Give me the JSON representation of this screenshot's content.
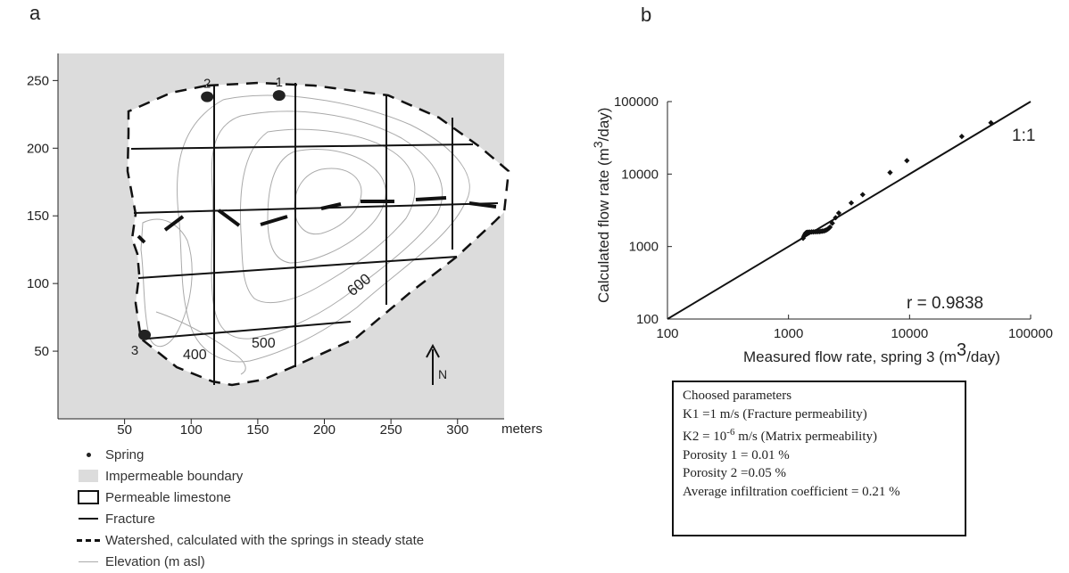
{
  "panel_a": {
    "letter": "a",
    "x_ticks": [
      "50",
      "100",
      "150",
      "200",
      "250",
      "300"
    ],
    "x_unit": "meters",
    "y_ticks": [
      "50",
      "100",
      "150",
      "200",
      "250"
    ],
    "springs": [
      {
        "label": "2",
        "x": 112,
        "y": 238
      },
      {
        "label": "1",
        "x": 166,
        "y": 239
      },
      {
        "label": "3",
        "x": 65,
        "y": 62
      }
    ],
    "contour_labels": [
      "600",
      "500",
      "400"
    ],
    "north_label": "N"
  },
  "legend": {
    "items": [
      {
        "symbol": "dot",
        "label": "Spring"
      },
      {
        "symbol": "gray",
        "label": "Impermeable boundary"
      },
      {
        "symbol": "box",
        "label": "Permeable limestone"
      },
      {
        "symbol": "line",
        "label": "Fracture"
      },
      {
        "symbol": "dash",
        "label": "Watershed, calculated with the springs in steady state"
      },
      {
        "symbol": "thin",
        "label": "Elevation (m asl)"
      }
    ]
  },
  "panel_b": {
    "letter": "b",
    "ylabel_main": "Calculated flow rate  (m",
    "ylabel_sup": "3",
    "ylabel_tail": "/day)",
    "xlabel_main": "Measured flow rate, spring 3 (m",
    "xlabel_sup": "3",
    "xlabel_tail": "/day)",
    "one_to_one_label": "1:1",
    "r_label": "r = 0.9838"
  },
  "parameters": {
    "title": "Choosed parameters",
    "k1": "K1 =1 m/s  (Fracture permeability)",
    "k2_prefix": "K2 = 10",
    "k2_exp": "-6",
    "k2_suffix": "m/s (Matrix permeability)",
    "porosity1": "Porosity 1 = 0.01 %",
    "porosity2": "Porosity 2 =0.05 %",
    "infiltration": "Average infiltration coefficient = 0.21 %"
  },
  "chart_data": [
    {
      "type": "map",
      "xlim": [
        0,
        335
      ],
      "ylim": [
        0,
        270
      ],
      "x_ticks": [
        50,
        100,
        150,
        200,
        250,
        300
      ],
      "y_ticks": [
        50,
        100,
        150,
        200,
        250
      ],
      "colors": {
        "impermeable": "#dcdcdc",
        "limestone": "#ffffff"
      }
    },
    {
      "type": "scatter",
      "x_scale": "log",
      "y_scale": "log",
      "xlim": [
        100,
        100000
      ],
      "ylim": [
        100,
        100000
      ],
      "x_ticks": [
        100,
        1000,
        10000,
        100000
      ],
      "y_ticks": [
        100,
        1000,
        10000,
        100000
      ],
      "x_tick_labels": [
        "100",
        "1000",
        "10000",
        "100000"
      ],
      "y_tick_labels": [
        "100",
        "1000",
        "10000",
        "100000"
      ],
      "series": [
        {
          "points": [
            [
              1320,
              1300
            ],
            [
              1340,
              1380
            ],
            [
              1360,
              1450
            ],
            [
              1380,
              1520
            ],
            [
              1400,
              1560
            ],
            [
              1430,
              1570
            ],
            [
              1460,
              1580
            ],
            [
              1500,
              1580
            ],
            [
              1550,
              1590
            ],
            [
              1600,
              1590
            ],
            [
              1650,
              1600
            ],
            [
              1700,
              1600
            ],
            [
              1750,
              1610
            ],
            [
              1800,
              1610
            ],
            [
              1850,
              1620
            ],
            [
              1900,
              1630
            ],
            [
              1950,
              1640
            ],
            [
              2000,
              1660
            ],
            [
              2050,
              1690
            ],
            [
              2100,
              1730
            ],
            [
              2150,
              1780
            ],
            [
              2200,
              1850
            ],
            [
              2300,
              2100
            ],
            [
              2450,
              2500
            ],
            [
              2600,
              2900
            ],
            [
              3300,
              4000
            ],
            [
              4100,
              5200
            ],
            [
              6900,
              10500
            ],
            [
              9500,
              15300
            ],
            [
              27000,
              33000
            ],
            [
              47000,
              51000
            ]
          ]
        },
        {
          "line": [
            [
              100,
              100
            ],
            [
              100000,
              100000
            ]
          ]
        }
      ]
    }
  ]
}
